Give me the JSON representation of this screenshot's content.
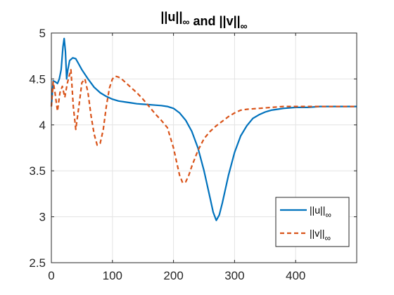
{
  "chart_data": {
    "type": "line",
    "title": {
      "parts": [
        {
          "text": "||u||",
          "sub": "∞"
        },
        {
          "text": " and "
        },
        {
          "text": "||v||",
          "sub": "∞"
        }
      ]
    },
    "xlabel": "",
    "ylabel": "",
    "xlim": [
      0,
      500
    ],
    "ylim": [
      2.5,
      5
    ],
    "xticks": [
      0,
      100,
      200,
      300,
      400
    ],
    "yticks": [
      2.5,
      3,
      3.5,
      4,
      4.5,
      5
    ],
    "xtick_labels": [
      "0",
      "100",
      "200",
      "300",
      "400"
    ],
    "ytick_labels": [
      "2.5",
      "3",
      "3.5",
      "4",
      "4.5",
      "5"
    ],
    "grid": true,
    "legend_position": "bottom-right",
    "series": [
      {
        "name": "||u||",
        "name_sub": "∞",
        "color": "#0072BD",
        "style": "solid",
        "x": [
          0,
          3,
          6,
          10,
          13,
          16,
          19,
          21,
          23,
          25,
          27,
          30,
          35,
          40,
          45,
          50,
          60,
          70,
          80,
          90,
          100,
          110,
          120,
          130,
          140,
          150,
          160,
          170,
          180,
          190,
          200,
          210,
          220,
          230,
          240,
          250,
          260,
          265,
          270,
          275,
          280,
          290,
          300,
          310,
          320,
          330,
          340,
          350,
          360,
          370,
          380,
          400,
          420,
          440,
          460,
          480,
          500
        ],
        "y": [
          4.2,
          4.48,
          4.47,
          4.45,
          4.5,
          4.6,
          4.85,
          4.94,
          4.8,
          4.5,
          4.6,
          4.7,
          4.73,
          4.72,
          4.66,
          4.6,
          4.5,
          4.41,
          4.35,
          4.31,
          4.28,
          4.26,
          4.25,
          4.24,
          4.23,
          4.225,
          4.22,
          4.215,
          4.21,
          4.2,
          4.18,
          4.13,
          4.05,
          3.93,
          3.75,
          3.5,
          3.2,
          3.05,
          2.96,
          3.02,
          3.15,
          3.45,
          3.7,
          3.88,
          3.99,
          4.07,
          4.11,
          4.14,
          4.16,
          4.17,
          4.18,
          4.19,
          4.19,
          4.2,
          4.2,
          4.2,
          4.2
        ]
      },
      {
        "name": "||v||",
        "name_sub": "∞",
        "color": "#D95319",
        "style": "dashed",
        "x": [
          0,
          3,
          6,
          10,
          14,
          18,
          22,
          26,
          28,
          32,
          36,
          40,
          45,
          50,
          55,
          60,
          65,
          70,
          75,
          80,
          85,
          90,
          95,
          100,
          105,
          110,
          115,
          120,
          130,
          140,
          150,
          160,
          170,
          180,
          190,
          200,
          205,
          210,
          215,
          220,
          225,
          230,
          240,
          250,
          260,
          270,
          280,
          290,
          300,
          310,
          320,
          340,
          360,
          380,
          400,
          420,
          440,
          460,
          480,
          500
        ],
        "y": [
          4.2,
          4.47,
          4.35,
          4.15,
          4.35,
          4.42,
          4.3,
          4.45,
          4.5,
          4.6,
          4.2,
          3.95,
          4.2,
          4.46,
          4.5,
          4.35,
          4.1,
          3.9,
          3.78,
          3.8,
          3.95,
          4.2,
          4.4,
          4.5,
          4.53,
          4.52,
          4.5,
          4.47,
          4.41,
          4.35,
          4.28,
          4.2,
          4.12,
          4.05,
          3.97,
          3.75,
          3.6,
          3.45,
          3.37,
          3.38,
          3.45,
          3.55,
          3.72,
          3.85,
          3.93,
          3.99,
          4.04,
          4.09,
          4.13,
          4.16,
          4.17,
          4.18,
          4.19,
          4.2,
          4.2,
          4.2,
          4.2,
          4.2,
          4.2,
          4.2
        ]
      }
    ]
  }
}
